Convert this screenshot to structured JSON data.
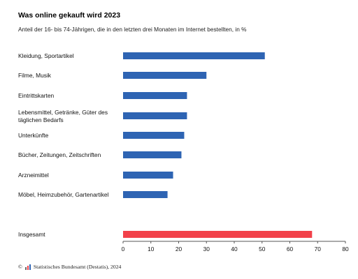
{
  "header": {
    "title": "Was online gekauft wird 2023",
    "subtitle": "Anteil der 16- bis 74-Jährigen, die in den letzten drei Monaten im Internet bestellten, in %"
  },
  "footer": {
    "copyright": "©",
    "source": "Statistisches Bundesamt (Destatis), 2024"
  },
  "colors": {
    "bar": "#2e64b3",
    "total_bar": "#f2414a",
    "axis": "#555555"
  },
  "chart_data": {
    "type": "bar",
    "orientation": "horizontal",
    "title": "Was online gekauft wird 2023",
    "subtitle": "Anteil der 16- bis 74-Jährigen, die in den letzten drei Monaten im Internet bestellten, in %",
    "categories": [
      [
        "Kleidung, Sportartikel"
      ],
      [
        "Filme, Musik"
      ],
      [
        "Eintrittskarten"
      ],
      [
        "Lebensmittel, Getränke, Güter des",
        "täglichen Bedarfs"
      ],
      [
        "Unterkünfte"
      ],
      [
        "Bücher, Zeitungen, Zeitschriften"
      ],
      [
        "Arzneimittel"
      ],
      [
        "Möbel, Heimzubehör, Gartenartikel"
      ],
      [
        "Insgesamt"
      ]
    ],
    "values": [
      51,
      30,
      23,
      23,
      22,
      21,
      18,
      16,
      68
    ],
    "highlight_index": 8,
    "xlim": [
      0,
      80
    ],
    "xticks": [
      "0",
      "10",
      "20",
      "30",
      "40",
      "50",
      "60",
      "70",
      "80"
    ],
    "grid": false,
    "legend": "none"
  }
}
